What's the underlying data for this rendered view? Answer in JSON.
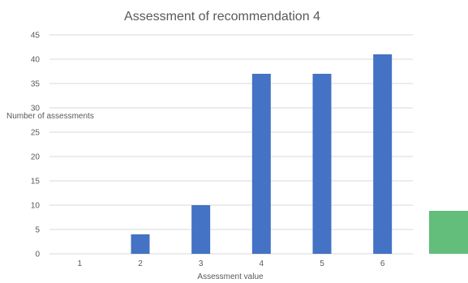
{
  "chart_data": {
    "type": "bar",
    "title": "Assessment of recommendation 4",
    "xlabel": "Assessment value",
    "ylabel": "Number of assessments",
    "categories": [
      "1",
      "2",
      "3",
      "4",
      "5",
      "6"
    ],
    "values": [
      0,
      4,
      10,
      37,
      37,
      41
    ],
    "ylim": [
      0,
      45
    ],
    "yticks": [
      0,
      5,
      10,
      15,
      20,
      25,
      30,
      35,
      40,
      45
    ],
    "grid": true,
    "bar_color": "#4472c4",
    "gridline_color": "#d9d9d9"
  },
  "decor": {
    "swatch_color": "#63be7b"
  }
}
